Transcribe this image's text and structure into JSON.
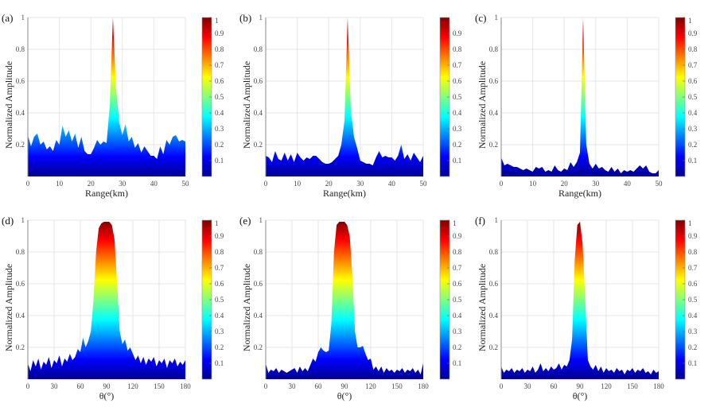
{
  "colormap": "jet",
  "colors": {
    "grid": "#e6e6e6",
    "axis": "#888888",
    "jet": [
      "#00008f",
      "#0000ff",
      "#00ffff",
      "#ffff00",
      "#ff0000",
      "#800000"
    ]
  },
  "chart_data": [
    {
      "type": "area",
      "panel_label": "(a)",
      "xlabel": "Range(km)",
      "ylabel": "Normalized Amplitude",
      "xlim": [
        0,
        50
      ],
      "ylim": [
        0,
        1
      ],
      "grid": true,
      "xticks": [
        "0",
        "10",
        "20",
        "30",
        "40",
        "50"
      ],
      "yticks": [
        "0.2",
        "0.4",
        "0.6",
        "0.8",
        "1"
      ],
      "colorbar": {
        "range": [
          0,
          1
        ],
        "ticks": [
          "0.1",
          "0.2",
          "0.3",
          "0.4",
          "0.5",
          "0.6",
          "0.7",
          "0.8",
          "0.9",
          "1"
        ]
      },
      "x": [
        0,
        1,
        2,
        3,
        4,
        5,
        6,
        7,
        8,
        9,
        10,
        11,
        12,
        13,
        14,
        15,
        16,
        17,
        18,
        19,
        20,
        21,
        22,
        23,
        24,
        25,
        26,
        27,
        28,
        29,
        30,
        31,
        32,
        33,
        34,
        35,
        36,
        37,
        38,
        39,
        40,
        41,
        42,
        43,
        44,
        45,
        46,
        47,
        48,
        49,
        50
      ],
      "y": [
        0.26,
        0.19,
        0.25,
        0.27,
        0.2,
        0.22,
        0.17,
        0.19,
        0.16,
        0.23,
        0.2,
        0.32,
        0.25,
        0.29,
        0.22,
        0.27,
        0.18,
        0.25,
        0.16,
        0.14,
        0.14,
        0.18,
        0.23,
        0.2,
        0.22,
        0.21,
        0.45,
        1.0,
        0.55,
        0.34,
        0.26,
        0.33,
        0.22,
        0.25,
        0.18,
        0.21,
        0.15,
        0.19,
        0.16,
        0.13,
        0.13,
        0.11,
        0.19,
        0.14,
        0.23,
        0.2,
        0.25,
        0.26,
        0.22,
        0.23,
        0.22
      ]
    },
    {
      "type": "area",
      "panel_label": "(b)",
      "xlabel": "Range(km)",
      "ylabel": "Normalized Amplitude",
      "xlim": [
        0,
        50
      ],
      "ylim": [
        0,
        1
      ],
      "grid": true,
      "xticks": [
        "0",
        "10",
        "20",
        "30",
        "40",
        "50"
      ],
      "yticks": [
        "0.2",
        "0.4",
        "0.6",
        "0.8",
        "1"
      ],
      "colorbar": {
        "range": [
          0,
          1
        ],
        "ticks": [
          "0.1",
          "0.2",
          "0.3",
          "0.4",
          "0.5",
          "0.6",
          "0.7",
          "0.8",
          "0.9"
        ]
      },
      "x": [
        0,
        1,
        2,
        3,
        4,
        5,
        6,
        7,
        8,
        9,
        10,
        11,
        12,
        13,
        14,
        15,
        16,
        17,
        18,
        19,
        20,
        21,
        22,
        23,
        24,
        25,
        26,
        27,
        28,
        29,
        30,
        31,
        32,
        33,
        34,
        35,
        36,
        37,
        38,
        39,
        40,
        41,
        42,
        43,
        44,
        45,
        46,
        47,
        48,
        49,
        50
      ],
      "y": [
        0.13,
        0.12,
        0.09,
        0.16,
        0.11,
        0.1,
        0.15,
        0.1,
        0.14,
        0.09,
        0.15,
        0.12,
        0.1,
        0.12,
        0.11,
        0.13,
        0.13,
        0.11,
        0.09,
        0.08,
        0.08,
        0.09,
        0.11,
        0.13,
        0.2,
        0.35,
        1.0,
        0.42,
        0.25,
        0.18,
        0.1,
        0.09,
        0.08,
        0.08,
        0.07,
        0.12,
        0.16,
        0.12,
        0.13,
        0.12,
        0.12,
        0.1,
        0.13,
        0.2,
        0.11,
        0.14,
        0.1,
        0.15,
        0.12,
        0.09,
        0.13
      ]
    },
    {
      "type": "area",
      "panel_label": "(c)",
      "xlabel": "Range(km)",
      "ylabel": "Normalized Amplitude",
      "xlim": [
        0,
        50
      ],
      "ylim": [
        0,
        1
      ],
      "grid": true,
      "xticks": [
        "0",
        "10",
        "20",
        "30",
        "40",
        "50"
      ],
      "yticks": [
        "0.2",
        "0.4",
        "0.6",
        "0.8",
        "1"
      ],
      "colorbar": {
        "range": [
          0,
          1
        ],
        "ticks": [
          "0.1",
          "0.2",
          "0.3",
          "0.4",
          "0.5",
          "0.6",
          "0.7",
          "0.8",
          "0.9",
          "1"
        ]
      },
      "x": [
        0,
        1,
        2,
        3,
        4,
        5,
        6,
        7,
        8,
        9,
        10,
        11,
        12,
        13,
        14,
        15,
        16,
        17,
        18,
        19,
        20,
        21,
        22,
        23,
        24,
        25,
        26,
        27,
        28,
        29,
        30,
        31,
        32,
        33,
        34,
        35,
        36,
        37,
        38,
        39,
        40,
        41,
        42,
        43,
        44,
        45,
        46,
        47,
        48,
        49,
        50
      ],
      "y": [
        0.12,
        0.07,
        0.08,
        0.07,
        0.06,
        0.06,
        0.05,
        0.04,
        0.05,
        0.04,
        0.03,
        0.06,
        0.05,
        0.06,
        0.03,
        0.04,
        0.03,
        0.07,
        0.04,
        0.03,
        0.05,
        0.04,
        0.09,
        0.06,
        0.09,
        0.15,
        1.0,
        0.2,
        0.08,
        0.05,
        0.08,
        0.05,
        0.06,
        0.04,
        0.03,
        0.06,
        0.03,
        0.05,
        0.02,
        0.04,
        0.03,
        0.04,
        0.03,
        0.05,
        0.07,
        0.05,
        0.07,
        0.03,
        0.02,
        0.02,
        0.04
      ]
    },
    {
      "type": "area",
      "panel_label": "(d)",
      "xlabel": "θ(°)",
      "ylabel": "Normalized Amplitude",
      "xlim": [
        0,
        180
      ],
      "ylim": [
        0,
        1
      ],
      "grid": true,
      "xticks": [
        "0",
        "30",
        "60",
        "90",
        "120",
        "150",
        "180"
      ],
      "yticks": [
        "0.2",
        "0.4",
        "0.6",
        "0.8",
        "1"
      ],
      "colorbar": {
        "range": [
          0,
          1
        ],
        "ticks": [
          "0.1",
          "0.2",
          "0.3",
          "0.4",
          "0.5",
          "0.6",
          "0.7",
          "0.8",
          "0.9",
          "1"
        ]
      },
      "x": [
        0,
        3,
        6,
        9,
        12,
        15,
        18,
        21,
        24,
        27,
        30,
        33,
        36,
        39,
        42,
        45,
        48,
        51,
        54,
        57,
        60,
        63,
        66,
        69,
        72,
        75,
        78,
        81,
        84,
        87,
        90,
        93,
        96,
        99,
        102,
        105,
        108,
        111,
        114,
        117,
        120,
        123,
        126,
        129,
        132,
        135,
        138,
        141,
        144,
        147,
        150,
        153,
        156,
        159,
        162,
        165,
        168,
        171,
        174,
        177,
        180
      ],
      "y": [
        0.1,
        0.05,
        0.12,
        0.08,
        0.13,
        0.06,
        0.11,
        0.09,
        0.14,
        0.07,
        0.12,
        0.1,
        0.15,
        0.08,
        0.13,
        0.11,
        0.16,
        0.12,
        0.14,
        0.19,
        0.17,
        0.26,
        0.2,
        0.24,
        0.3,
        0.5,
        0.8,
        0.95,
        0.98,
        0.99,
        0.99,
        0.99,
        0.97,
        0.88,
        0.6,
        0.3,
        0.22,
        0.25,
        0.18,
        0.2,
        0.16,
        0.12,
        0.15,
        0.1,
        0.14,
        0.09,
        0.13,
        0.11,
        0.14,
        0.08,
        0.12,
        0.1,
        0.13,
        0.07,
        0.12,
        0.1,
        0.13,
        0.08,
        0.11,
        0.09,
        0.12
      ]
    },
    {
      "type": "area",
      "panel_label": "(e)",
      "xlabel": "θ(°)",
      "ylabel": "Normalized Amplitude",
      "xlim": [
        0,
        180
      ],
      "ylim": [
        0,
        1
      ],
      "grid": true,
      "xticks": [
        "0",
        "30",
        "60",
        "90",
        "120",
        "150",
        "180"
      ],
      "yticks": [
        "0.2",
        "0.4",
        "0.6",
        "0.8",
        "1"
      ],
      "colorbar": {
        "range": [
          0,
          1
        ],
        "ticks": [
          "0.1",
          "0.2",
          "0.3",
          "0.4",
          "0.5",
          "0.6",
          "0.7",
          "0.8",
          "0.9",
          "1"
        ]
      },
      "x": [
        0,
        3,
        6,
        9,
        12,
        15,
        18,
        21,
        24,
        27,
        30,
        33,
        36,
        39,
        42,
        45,
        48,
        51,
        54,
        57,
        60,
        63,
        66,
        69,
        72,
        75,
        78,
        81,
        84,
        87,
        90,
        93,
        96,
        99,
        102,
        105,
        108,
        111,
        114,
        117,
        120,
        123,
        126,
        129,
        132,
        135,
        138,
        141,
        144,
        147,
        150,
        153,
        156,
        159,
        162,
        165,
        168,
        171,
        174,
        177,
        180
      ],
      "y": [
        0.1,
        0.04,
        0.06,
        0.05,
        0.07,
        0.04,
        0.06,
        0.05,
        0.04,
        0.05,
        0.06,
        0.07,
        0.04,
        0.08,
        0.05,
        0.07,
        0.05,
        0.09,
        0.13,
        0.11,
        0.17,
        0.2,
        0.18,
        0.17,
        0.18,
        0.35,
        0.8,
        0.97,
        0.99,
        0.99,
        0.99,
        0.97,
        0.9,
        0.65,
        0.3,
        0.2,
        0.2,
        0.21,
        0.16,
        0.12,
        0.13,
        0.06,
        0.08,
        0.05,
        0.08,
        0.04,
        0.07,
        0.05,
        0.06,
        0.04,
        0.06,
        0.05,
        0.07,
        0.04,
        0.06,
        0.05,
        0.07,
        0.04,
        0.06,
        0.03,
        0.1
      ]
    },
    {
      "type": "area",
      "panel_label": "(f)",
      "xlabel": "θ(°)",
      "ylabel": "Normalized Amplitude",
      "xlim": [
        0,
        180
      ],
      "ylim": [
        0,
        1
      ],
      "grid": true,
      "xticks": [
        "0",
        "30",
        "60",
        "90",
        "120",
        "150",
        "180"
      ],
      "yticks": [
        "0.2",
        "0.4",
        "0.6",
        "0.8",
        "1"
      ],
      "colorbar": {
        "range": [
          0,
          1
        ],
        "ticks": [
          "0.1",
          "0.2",
          "0.3",
          "0.4",
          "0.5",
          "0.6",
          "0.7",
          "0.8",
          "0.9",
          "1"
        ]
      },
      "x": [
        0,
        3,
        6,
        9,
        12,
        15,
        18,
        21,
        24,
        27,
        30,
        33,
        36,
        39,
        42,
        45,
        48,
        51,
        54,
        57,
        60,
        63,
        66,
        69,
        72,
        75,
        78,
        81,
        84,
        87,
        90,
        93,
        96,
        99,
        102,
        105,
        108,
        111,
        114,
        117,
        120,
        123,
        126,
        129,
        132,
        135,
        138,
        141,
        144,
        147,
        150,
        153,
        156,
        159,
        162,
        165,
        168,
        171,
        174,
        177,
        180
      ],
      "y": [
        0.08,
        0.04,
        0.06,
        0.05,
        0.07,
        0.04,
        0.06,
        0.05,
        0.07,
        0.04,
        0.06,
        0.05,
        0.08,
        0.04,
        0.06,
        0.1,
        0.05,
        0.07,
        0.05,
        0.08,
        0.06,
        0.07,
        0.1,
        0.06,
        0.09,
        0.08,
        0.12,
        0.25,
        0.75,
        0.97,
        0.99,
        0.85,
        0.5,
        0.12,
        0.08,
        0.06,
        0.09,
        0.05,
        0.08,
        0.04,
        0.07,
        0.05,
        0.06,
        0.04,
        0.07,
        0.05,
        0.06,
        0.03,
        0.06,
        0.05,
        0.07,
        0.04,
        0.06,
        0.05,
        0.07,
        0.04,
        0.05,
        0.03,
        0.06,
        0.04,
        0.05
      ]
    }
  ]
}
